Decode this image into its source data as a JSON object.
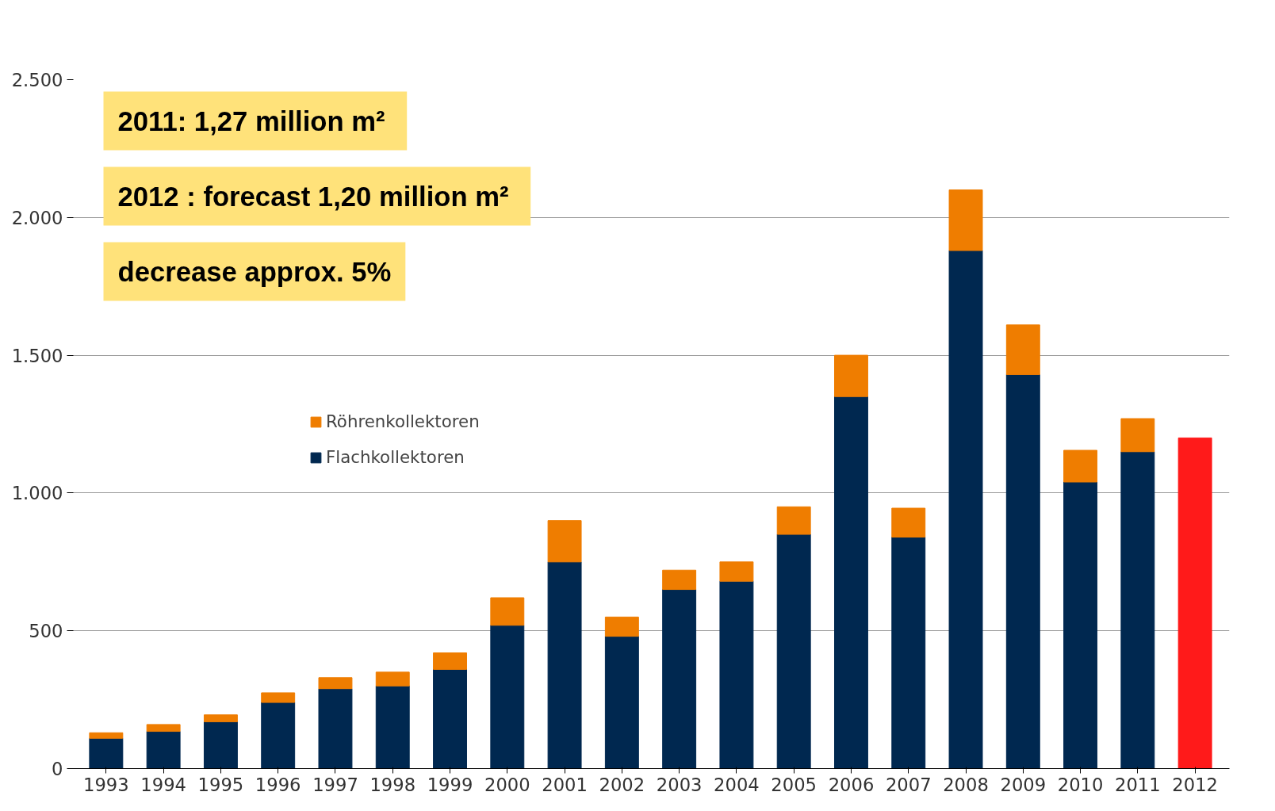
{
  "chart_data": {
    "type": "bar",
    "stacked": true,
    "categories": [
      "1993",
      "1994",
      "1995",
      "1996",
      "1997",
      "1998",
      "1999",
      "2000",
      "2001",
      "2002",
      "2003",
      "2004",
      "2005",
      "2006",
      "2007",
      "2008",
      "2009",
      "2010",
      "2011",
      "2012"
    ],
    "series": [
      {
        "name": "Flachkollektoren",
        "color": "#002850",
        "values": [
          110,
          135,
          170,
          240,
          290,
          300,
          360,
          520,
          750,
          480,
          650,
          680,
          850,
          1350,
          840,
          1880,
          1430,
          1040,
          1150,
          null
        ]
      },
      {
        "name": "Röhrenkollektoren",
        "color": "#ef7d00",
        "values": [
          20,
          25,
          25,
          35,
          40,
          50,
          60,
          100,
          150,
          70,
          70,
          70,
          100,
          150,
          105,
          220,
          180,
          115,
          120,
          null
        ]
      },
      {
        "color": "#ff1a1a",
        "values": [
          null,
          null,
          null,
          null,
          null,
          null,
          null,
          null,
          null,
          null,
          null,
          null,
          null,
          null,
          null,
          null,
          null,
          null,
          null,
          1200
        ]
      }
    ],
    "ylim": [
      0,
      2500
    ],
    "yticks": [
      0,
      500,
      {
        "value": 1000,
        "label": "1.000"
      },
      {
        "value": 1500,
        "label": "1.500"
      },
      {
        "value": 2000,
        "label": "2.000"
      },
      {
        "value": 2500,
        "label": "2.500"
      }
    ],
    "grid": "y",
    "legend": "left",
    "annotations": [
      "2011:  1,27 million m²",
      "2012 :  forecast 1,20 million m²",
      "decrease approx. 5%"
    ]
  }
}
